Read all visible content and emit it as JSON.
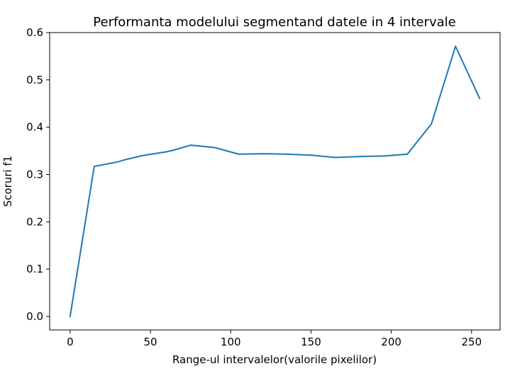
{
  "chart_data": {
    "type": "line",
    "title": "Performanta modelului segmentand datele in 4 intervale",
    "xlabel": "Range-ul intervalelor(valorile pixelilor)",
    "ylabel": "Scoruri f1",
    "xlim": [
      -12.75,
      267.75
    ],
    "ylim": [
      -0.0285,
      0.6
    ],
    "xticks": [
      0,
      50,
      100,
      150,
      200,
      250
    ],
    "yticks": [
      0.0,
      0.1,
      0.2,
      0.3,
      0.4,
      0.5,
      0.6
    ],
    "xtick_labels": [
      "0",
      "50",
      "100",
      "150",
      "200",
      "250"
    ],
    "ytick_labels": [
      "0.0",
      "0.1",
      "0.2",
      "0.3",
      "0.4",
      "0.5",
      "0.6"
    ],
    "grid": false,
    "color": "#1f77b4",
    "series": [
      {
        "x": [
          0,
          15,
          30,
          35,
          45,
          60,
          65,
          75,
          90,
          105,
          120,
          135,
          150,
          165,
          180,
          195,
          210,
          225,
          240,
          255
        ],
        "values": [
          0.0,
          0.317,
          0.327,
          0.332,
          0.34,
          0.348,
          0.352,
          0.362,
          0.357,
          0.343,
          0.344,
          0.343,
          0.341,
          0.336,
          0.338,
          0.339,
          0.343,
          0.407,
          0.571,
          0.461
        ]
      }
    ]
  }
}
